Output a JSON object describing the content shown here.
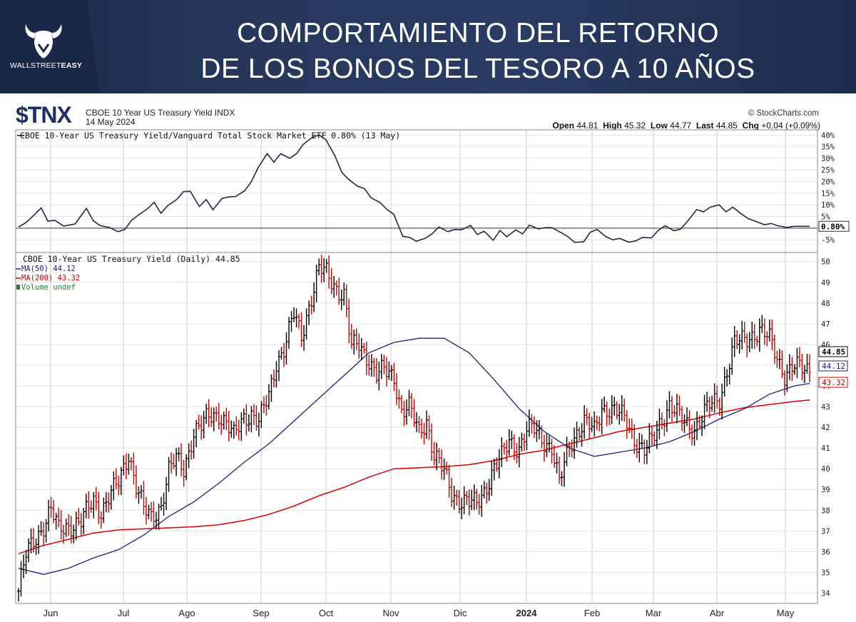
{
  "banner": {
    "logo_text_regular": "WALLSTREET",
    "logo_text_bold": "EASY",
    "title_line1": "COMPORTAMIENTO DEL RETORNO",
    "title_line2": "DE LOS BONOS DEL TESORO A 10 AÑOS"
  },
  "header": {
    "ticker": "$TNX",
    "name": "CBOE 10 Year US Treasury Yield INDX",
    "date": "14 May 2024",
    "source": "© StockCharts.com",
    "open_label": "Open",
    "open": "44.81",
    "high_label": "High",
    "high": "45.32",
    "low_label": "Low",
    "low": "44.77",
    "last_label": "Last",
    "last": "44.85",
    "chg_label": "Chg",
    "chg": "+0.04 (+0.09%)"
  },
  "colors": {
    "price_up": "#000000",
    "price_down": "#cc0000",
    "ma50": "#1a237e",
    "ma200": "#dd0000",
    "volume": "#2e7d32",
    "grid": "#cfcfcf"
  },
  "chart_data": [
    {
      "type": "line",
      "legend": "CBOE 10-Year US Treasury Yield/Vanguard Total Stock Market ETF 0.80% (13 May)",
      "x": [
        0,
        3,
        6,
        10,
        13,
        16,
        20,
        25,
        30,
        33,
        36,
        40,
        44,
        47,
        50,
        53,
        57,
        60,
        63,
        66,
        70,
        73,
        76,
        80,
        83,
        86,
        90,
        93,
        96,
        100,
        103,
        106,
        110,
        113,
        116,
        120,
        123,
        126,
        130,
        133,
        136,
        140,
        143,
        146,
        150,
        153,
        156,
        160,
        163,
        166,
        170,
        173,
        176,
        180,
        183,
        186,
        190,
        193,
        196,
        200,
        203,
        206,
        210,
        213,
        216,
        220,
        223,
        226,
        230,
        233,
        236,
        240,
        243,
        246,
        250,
        253,
        256,
        260,
        263,
        266,
        270,
        273,
        276,
        280,
        283,
        286,
        290,
        293,
        296,
        300,
        303,
        306,
        310,
        313,
        316,
        320,
        323,
        326,
        330,
        333,
        336,
        340,
        343,
        346,
        350
      ],
      "values": [
        0.5,
        2.2,
        4.8,
        8.7,
        3.0,
        3.4,
        0.9,
        1.8,
        8.5,
        3.3,
        1.1,
        0.4,
        -1.5,
        -0.6,
        3.4,
        5.6,
        8.3,
        11.1,
        6.4,
        9.7,
        12.3,
        15.7,
        15.8,
        9.3,
        12.3,
        7.9,
        12.8,
        13.4,
        13.6,
        16.0,
        20.0,
        26.0,
        32.0,
        28.3,
        32.0,
        30.0,
        32.0,
        36.0,
        39.0,
        40.0,
        38.0,
        31.0,
        24.0,
        21.0,
        18.0,
        17.0,
        13.0,
        11.0,
        8.0,
        6.0,
        -3.5,
        -4.0,
        -5.6,
        -4.3,
        -2.4,
        0.5,
        -1.5,
        -0.6,
        -0.7,
        1.2,
        -2.7,
        -1.3,
        -5.2,
        -1.0,
        -3.7,
        -0.7,
        -2.5,
        1.3,
        -0.3,
        0.2,
        0.2,
        -1.9,
        -3.6,
        -6.1,
        -5.9,
        -1.7,
        -0.6,
        -3.7,
        -5.0,
        -4.4,
        -6.0,
        -5.5,
        -4.0,
        -4.2,
        -1.0,
        1.0,
        -1.1,
        -0.3,
        3.0,
        8.0,
        7.0,
        9.0,
        10.0,
        7.0,
        9.0,
        6.0,
        4.0,
        3.0,
        1.5,
        2.0,
        1.0,
        0.3,
        0.8,
        0.8,
        0.8
      ],
      "ylim": [
        -8,
        41
      ],
      "yticks": [
        "40%",
        "35%",
        "30%",
        "25%",
        "20%",
        "15%",
        "10%",
        "5%",
        "-5%"
      ],
      "last_label": "0.80%",
      "grid": true
    },
    {
      "type": "ohlc",
      "legend": "CBOE 10-Year US Treasury Yield (Daily) 44.85",
      "legend_ma50": "MA(50) 44.12",
      "legend_ma200": "MA(200) 43.32",
      "legend_volume": "Volume undef",
      "x_labels": [
        "Jun",
        "Jul",
        "Ago",
        "Sep",
        "Oct",
        "Nov",
        "Dic",
        "2024",
        "Feb",
        "Mar",
        "Abr",
        "May"
      ],
      "ylim": [
        33.5,
        50.3
      ],
      "yticks": [
        34,
        35,
        36,
        37,
        38,
        39,
        40,
        41,
        42,
        43,
        44,
        45,
        46,
        47,
        48,
        49,
        50
      ],
      "close_points": [
        [
          0,
          34.1
        ],
        [
          3,
          35.8
        ],
        [
          6,
          36.5
        ],
        [
          10,
          37.3
        ],
        [
          13,
          38.0
        ],
        [
          16,
          37.0
        ],
        [
          20,
          37.3
        ],
        [
          25,
          37.4
        ],
        [
          30,
          38.5
        ],
        [
          33,
          38.0
        ],
        [
          36,
          38.6
        ],
        [
          40,
          39.3
        ],
        [
          44,
          40.8
        ],
        [
          47,
          39.2
        ],
        [
          50,
          38.0
        ],
        [
          53,
          37.6
        ],
        [
          57,
          38.3
        ],
        [
          60,
          39.9
        ],
        [
          63,
          40.4
        ],
        [
          66,
          40.0
        ],
        [
          70,
          41.8
        ],
        [
          73,
          42.0
        ],
        [
          76,
          42.5
        ],
        [
          80,
          42.7
        ],
        [
          83,
          42.2
        ],
        [
          86,
          41.5
        ],
        [
          90,
          42.5
        ],
        [
          93,
          42.7
        ],
        [
          96,
          42.2
        ],
        [
          100,
          43.5
        ],
        [
          103,
          45.2
        ],
        [
          106,
          45.8
        ],
        [
          110,
          47.4
        ],
        [
          113,
          46.4
        ],
        [
          116,
          47.9
        ],
        [
          120,
          49.6
        ],
        [
          123,
          49.4
        ],
        [
          126,
          48.9
        ],
        [
          130,
          48.4
        ],
        [
          133,
          45.8
        ],
        [
          136,
          46.0
        ],
        [
          140,
          45.3
        ],
        [
          143,
          44.5
        ],
        [
          146,
          44.7
        ],
        [
          150,
          44.5
        ],
        [
          153,
          42.8
        ],
        [
          156,
          42.9
        ],
        [
          160,
          41.8
        ],
        [
          163,
          42.4
        ],
        [
          166,
          40.6
        ],
        [
          170,
          39.8
        ],
        [
          173,
          38.9
        ],
        [
          176,
          38.5
        ],
        [
          180,
          38.3
        ],
        [
          183,
          38.3
        ],
        [
          186,
          39.0
        ],
        [
          190,
          40.0
        ],
        [
          193,
          40.5
        ],
        [
          196,
          41.4
        ],
        [
          200,
          41.0
        ],
        [
          203,
          41.8
        ],
        [
          206,
          41.9
        ],
        [
          210,
          41.4
        ],
        [
          213,
          41.0
        ],
        [
          216,
          39.2
        ],
        [
          220,
          41.2
        ],
        [
          223,
          41.8
        ],
        [
          226,
          42.2
        ],
        [
          230,
          41.8
        ],
        [
          233,
          43.0
        ],
        [
          236,
          42.9
        ],
        [
          240,
          42.6
        ],
        [
          243,
          42.3
        ],
        [
          246,
          41.5
        ],
        [
          250,
          40.8
        ],
        [
          253,
          41.3
        ],
        [
          256,
          42.2
        ],
        [
          260,
          43.1
        ],
        [
          263,
          42.6
        ],
        [
          266,
          42.2
        ],
        [
          270,
          42.0
        ],
        [
          273,
          42.5
        ],
        [
          276,
          43.0
        ],
        [
          280,
          43.4
        ],
        [
          283,
          44.8
        ],
        [
          286,
          46.0
        ],
        [
          290,
          46.2
        ],
        [
          293,
          46.5
        ],
        [
          296,
          46.7
        ],
        [
          300,
          46.2
        ],
        [
          303,
          45.4
        ],
        [
          306,
          44.6
        ],
        [
          310,
          44.9
        ],
        [
          313,
          44.8
        ],
        [
          316,
          44.85
        ]
      ],
      "ma50_points": [
        [
          0,
          35.2
        ],
        [
          10,
          34.9
        ],
        [
          20,
          35.2
        ],
        [
          30,
          35.7
        ],
        [
          40,
          36.1
        ],
        [
          50,
          36.8
        ],
        [
          60,
          37.7
        ],
        [
          70,
          38.4
        ],
        [
          80,
          39.3
        ],
        [
          90,
          40.3
        ],
        [
          100,
          41.2
        ],
        [
          110,
          42.3
        ],
        [
          120,
          43.4
        ],
        [
          130,
          44.5
        ],
        [
          140,
          45.6
        ],
        [
          150,
          46.1
        ],
        [
          160,
          46.3
        ],
        [
          170,
          46.3
        ],
        [
          180,
          45.6
        ],
        [
          190,
          44.3
        ],
        [
          200,
          42.9
        ],
        [
          210,
          41.8
        ],
        [
          220,
          41.0
        ],
        [
          230,
          40.6
        ],
        [
          240,
          40.8
        ],
        [
          250,
          41.0
        ],
        [
          260,
          41.3
        ],
        [
          270,
          41.8
        ],
        [
          280,
          42.4
        ],
        [
          290,
          42.9
        ],
        [
          300,
          43.6
        ],
        [
          310,
          44.0
        ],
        [
          316,
          44.12
        ]
      ],
      "ma200_points": [
        [
          0,
          35.9
        ],
        [
          10,
          36.3
        ],
        [
          20,
          36.6
        ],
        [
          30,
          36.9
        ],
        [
          40,
          37.05
        ],
        [
          50,
          37.1
        ],
        [
          60,
          37.15
        ],
        [
          70,
          37.2
        ],
        [
          80,
          37.3
        ],
        [
          90,
          37.5
        ],
        [
          100,
          37.8
        ],
        [
          110,
          38.2
        ],
        [
          120,
          38.7
        ],
        [
          130,
          39.1
        ],
        [
          140,
          39.6
        ],
        [
          150,
          40.0
        ],
        [
          160,
          40.05
        ],
        [
          170,
          40.1
        ],
        [
          180,
          40.2
        ],
        [
          190,
          40.4
        ],
        [
          200,
          40.7
        ],
        [
          210,
          40.9
        ],
        [
          220,
          41.2
        ],
        [
          230,
          41.5
        ],
        [
          240,
          41.8
        ],
        [
          250,
          42.0
        ],
        [
          260,
          42.2
        ],
        [
          270,
          42.4
        ],
        [
          280,
          42.7
        ],
        [
          290,
          42.95
        ],
        [
          300,
          43.1
        ],
        [
          310,
          43.25
        ],
        [
          316,
          43.32
        ]
      ],
      "last_labels": [
        "44.85",
        "44.12",
        "43.32"
      ],
      "grid": true
    }
  ]
}
